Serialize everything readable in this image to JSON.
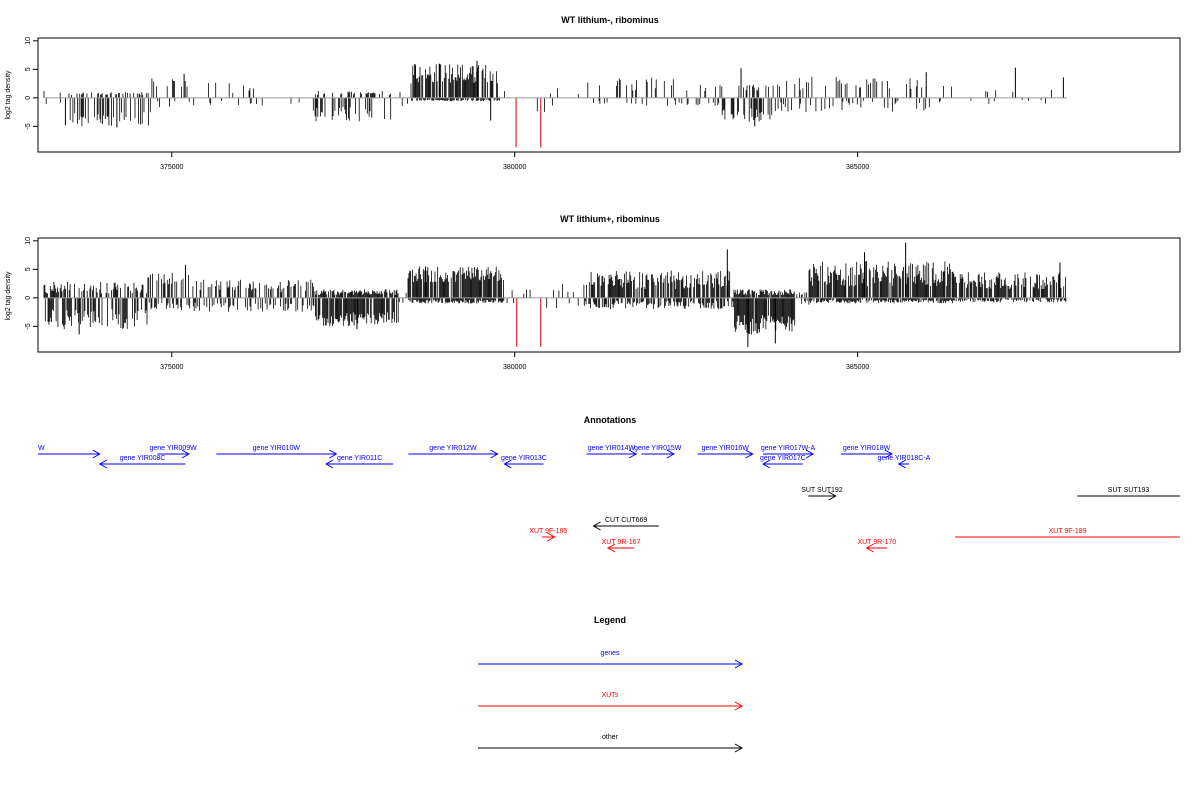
{
  "colors": {
    "genes": "#0000ff",
    "xuts": "#ff0000",
    "other": "#000000",
    "bars": "#000000",
    "axis": "#000000",
    "baseline": "#9a9a9a",
    "highlight": "#d40000"
  },
  "chart_data": [
    {
      "type": "bar",
      "title": "WT lithium-, ribominus",
      "ylabel": "log2 tag density",
      "xlim": [
        373050,
        389700
      ],
      "ylim": [
        -9.5,
        10.5
      ],
      "yticks": [
        -5,
        0,
        5,
        10
      ],
      "xticks": [
        375000,
        380000,
        385000
      ],
      "segments": [
        {
          "range": [
            373150,
            373450
          ],
          "density": 0.06,
          "pos": [
            0.5,
            1.8
          ],
          "neg": [
            0.4,
            1.2
          ]
        },
        {
          "range": [
            373500,
            374700
          ],
          "density": 0.32,
          "pos": [
            0.5,
            1.0
          ],
          "neg": [
            2.5,
            5.0
          ]
        },
        {
          "range": [
            374700,
            375350
          ],
          "density": 0.16,
          "pos": [
            1.2,
            3.6
          ],
          "neg": [
            0.5,
            1.8
          ]
        },
        {
          "range": [
            375350,
            376300
          ],
          "density": 0.1,
          "pos": [
            0.8,
            2.7
          ],
          "neg": [
            0.4,
            1.3
          ]
        },
        {
          "range": [
            376300,
            377050
          ],
          "density": 0.02,
          "pos": [
            0.8,
            2.2
          ],
          "neg": [
            0.5,
            1.5
          ]
        },
        {
          "range": [
            377050,
            378200
          ],
          "density": 0.3,
          "pos": [
            0.5,
            1.2
          ],
          "neg": [
            1.5,
            4.2
          ]
        },
        {
          "range": [
            378200,
            378500
          ],
          "density": 0.04,
          "pos": [
            0.5,
            1.5
          ],
          "neg": [
            0.5,
            1.5
          ]
        },
        {
          "range": [
            378500,
            379800
          ],
          "density": 0.72,
          "pos": [
            2.5,
            6.0
          ],
          "neg": [
            0.3,
            0.6
          ]
        },
        {
          "range": [
            379800,
            381050
          ],
          "density": 0.05,
          "pos": [
            0.5,
            2.0
          ],
          "neg": [
            0.5,
            2.5
          ]
        },
        {
          "range": [
            381050,
            383000
          ],
          "density": 0.16,
          "pos": [
            1.2,
            3.7
          ],
          "neg": [
            0.4,
            1.4
          ]
        },
        {
          "range": [
            383000,
            383800
          ],
          "density": 0.4,
          "pos": [
            0.8,
            2.5
          ],
          "neg": [
            1.8,
            4.2
          ]
        },
        {
          "range": [
            383800,
            386200
          ],
          "density": 0.16,
          "pos": [
            1.2,
            3.8
          ],
          "neg": [
            0.5,
            2.5
          ]
        },
        {
          "range": [
            386200,
            388050
          ],
          "density": 0.06,
          "pos": [
            0.8,
            2.5
          ],
          "neg": [
            0.3,
            1.2
          ]
        }
      ],
      "spikes": [
        {
          "x": 373450,
          "y": -4.8
        },
        {
          "x": 374200,
          "y": -5.2
        },
        {
          "x": 375180,
          "y": 4.2
        },
        {
          "x": 378550,
          "y": 5.6
        },
        {
          "x": 378900,
          "y": 6.0
        },
        {
          "x": 379450,
          "y": 6.5
        },
        {
          "x": 379650,
          "y": -4.0
        },
        {
          "x": 383300,
          "y": 5.2
        },
        {
          "x": 383500,
          "y": -5.0
        },
        {
          "x": 386000,
          "y": 4.5
        },
        {
          "x": 387300,
          "y": 5.3
        },
        {
          "x": 388000,
          "y": 3.6
        }
      ],
      "highlights": [
        {
          "x": 380020,
          "y": -8.7
        },
        {
          "x": 380380,
          "y": -8.7
        }
      ]
    },
    {
      "type": "bar",
      "title": "WT lithium+, ribominus",
      "ylabel": "log2 tag density",
      "xlim": [
        373050,
        389700
      ],
      "ylim": [
        -9.5,
        10.5
      ],
      "yticks": [
        -5,
        0,
        5,
        10
      ],
      "xticks": [
        375000,
        380000,
        385000
      ],
      "segments": [
        {
          "range": [
            373150,
            374650
          ],
          "density": 0.55,
          "pos": [
            0.8,
            2.8
          ],
          "neg": [
            2.0,
            5.5
          ]
        },
        {
          "range": [
            374650,
            375300
          ],
          "density": 0.5,
          "pos": [
            2.0,
            4.8
          ],
          "neg": [
            0.8,
            2.2
          ]
        },
        {
          "range": [
            375300,
            377100
          ],
          "density": 0.45,
          "pos": [
            1.0,
            3.2
          ],
          "neg": [
            0.8,
            2.5
          ]
        },
        {
          "range": [
            377100,
            378300
          ],
          "density": 0.85,
          "pos": [
            0.5,
            1.5
          ],
          "neg": [
            2.5,
            5.0
          ]
        },
        {
          "range": [
            378300,
            378450
          ],
          "density": 0.15,
          "pos": [
            0.5,
            1.0
          ],
          "neg": [
            0.5,
            1.0
          ]
        },
        {
          "range": [
            378450,
            379850
          ],
          "density": 0.85,
          "pos": [
            2.5,
            5.5
          ],
          "neg": [
            0.3,
            1.0
          ]
        },
        {
          "range": [
            379850,
            381000
          ],
          "density": 0.1,
          "pos": [
            0.5,
            2.5
          ],
          "neg": [
            0.5,
            2.0
          ]
        },
        {
          "range": [
            381000,
            383200
          ],
          "density": 0.7,
          "pos": [
            1.5,
            4.8
          ],
          "neg": [
            0.5,
            2.0
          ]
        },
        {
          "range": [
            383200,
            384100
          ],
          "density": 0.95,
          "pos": [
            0.5,
            1.5
          ],
          "neg": [
            3.0,
            6.5
          ]
        },
        {
          "range": [
            384100,
            384300
          ],
          "density": 0.3,
          "pos": [
            0.5,
            1.2
          ],
          "neg": [
            0.5,
            1.2
          ]
        },
        {
          "range": [
            384300,
            386400
          ],
          "density": 0.9,
          "pos": [
            2.0,
            6.5
          ],
          "neg": [
            0.3,
            1.0
          ]
        },
        {
          "range": [
            386400,
            388050
          ],
          "density": 0.7,
          "pos": [
            1.5,
            4.5
          ],
          "neg": [
            0.2,
            0.8
          ]
        }
      ],
      "spikes": [
        {
          "x": 373650,
          "y": -6.4
        },
        {
          "x": 375200,
          "y": 5.8
        },
        {
          "x": 377700,
          "y": -5.5
        },
        {
          "x": 378700,
          "y": 5.5
        },
        {
          "x": 383100,
          "y": 8.5
        },
        {
          "x": 383400,
          "y": -8.6
        },
        {
          "x": 383800,
          "y": -8.0
        },
        {
          "x": 385100,
          "y": 8.0
        },
        {
          "x": 385700,
          "y": 9.7
        },
        {
          "x": 387950,
          "y": 6.2
        }
      ],
      "highlights": [
        {
          "x": 380030,
          "y": -8.6
        },
        {
          "x": 380380,
          "y": -8.6
        }
      ]
    },
    {
      "type": "annotation_track",
      "title": "Annotations",
      "features": [
        {
          "label": "W",
          "class": "genes",
          "strand": "+",
          "row": 0,
          "start": 373050,
          "end": 373950,
          "label_at": "start"
        },
        {
          "label": "gene YIR008C",
          "class": "genes",
          "strand": "-",
          "row": 1,
          "start": 373950,
          "end": 375200
        },
        {
          "label": "gene YIR009W",
          "class": "genes",
          "strand": "+",
          "row": 0,
          "start": 374790,
          "end": 375250
        },
        {
          "label": "gene YIR010W",
          "class": "genes",
          "strand": "+",
          "row": 0,
          "start": 375650,
          "end": 377400
        },
        {
          "label": "gene YIR011C",
          "class": "genes",
          "strand": "-",
          "row": 1,
          "start": 377250,
          "end": 378230
        },
        {
          "label": "gene YIR012W",
          "class": "genes",
          "strand": "+",
          "row": 0,
          "start": 378450,
          "end": 379750
        },
        {
          "label": "gene YIR013C",
          "class": "genes",
          "strand": "-",
          "row": 1,
          "start": 379850,
          "end": 380420
        },
        {
          "label": "gene YIR014W",
          "class": "genes",
          "strand": "+",
          "row": 0,
          "start": 381050,
          "end": 381770
        },
        {
          "label": "gene YIR015W",
          "class": "genes",
          "strand": "+",
          "row": 0,
          "start": 381850,
          "end": 382320
        },
        {
          "label": "gene YIR016W",
          "class": "genes",
          "strand": "+",
          "row": 0,
          "start": 382670,
          "end": 383470
        },
        {
          "label": "gene YIR017W-A",
          "class": "genes",
          "strand": "+",
          "row": 0,
          "start": 383620,
          "end": 384350
        },
        {
          "label": "gene YIR017C",
          "class": "genes",
          "strand": "-",
          "row": 1,
          "start": 383620,
          "end": 384200
        },
        {
          "label": "gene YIR018W",
          "class": "genes",
          "strand": "+",
          "row": 0,
          "start": 384760,
          "end": 385500
        },
        {
          "label": "gene YIR018C-A",
          "class": "genes",
          "strand": "-",
          "row": 1,
          "start": 385600,
          "end": 385750
        },
        {
          "label": "SUT SUT192",
          "class": "other",
          "strand": "+",
          "row": 2,
          "start": 384280,
          "end": 384680
        },
        {
          "label": "SUT SUT193",
          "class": "other",
          "strand": "+",
          "row": 2,
          "start": 388200,
          "end": 389700,
          "arrow": false
        },
        {
          "label": "CUT CUT669",
          "class": "other",
          "strand": "-",
          "row": 3,
          "start": 381150,
          "end": 382100
        },
        {
          "label": "XUT 9F-185",
          "class": "xuts",
          "strand": "+",
          "row": 4,
          "start": 380400,
          "end": 380580
        },
        {
          "label": "XUT 9R-167",
          "class": "xuts",
          "strand": "-",
          "row": 5,
          "start": 381360,
          "end": 381740
        },
        {
          "label": "XUT 9R-170",
          "class": "xuts",
          "strand": "-",
          "row": 5,
          "start": 385130,
          "end": 385430
        },
        {
          "label": "XUT 9F-189",
          "class": "xuts",
          "strand": "+",
          "row": 4,
          "start": 386420,
          "end": 389700,
          "arrow": false
        }
      ]
    },
    {
      "type": "legend",
      "title": "Legend",
      "entries": [
        {
          "label": "genes",
          "class": "genes"
        },
        {
          "label": "XUTs",
          "class": "xuts"
        },
        {
          "label": "other",
          "class": "other"
        }
      ]
    }
  ]
}
